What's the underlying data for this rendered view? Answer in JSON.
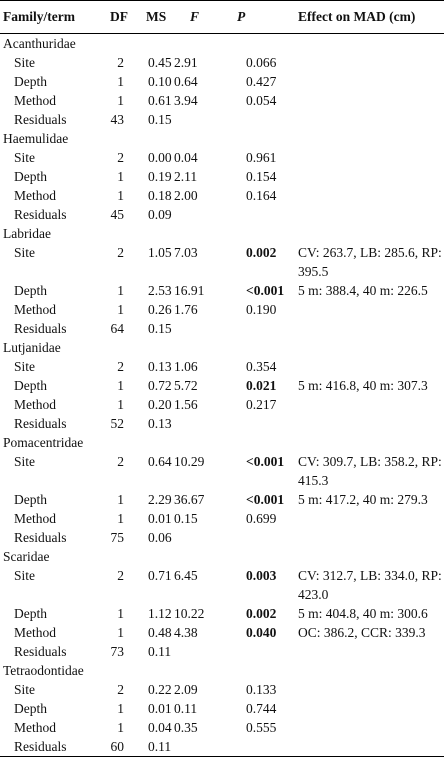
{
  "header": {
    "columns": [
      "Family/term",
      "DF",
      "MS",
      "F",
      "P",
      "Effect on MAD (cm)"
    ]
  },
  "groups": [
    {
      "family": "Acanthuridae",
      "rows": [
        {
          "term": "Site",
          "df": "2",
          "ms": "0.45",
          "f": "2.91",
          "p": "0.066"
        },
        {
          "term": "Depth",
          "df": "1",
          "ms": "0.10",
          "f": "0.64",
          "p": "0.427"
        },
        {
          "term": "Method",
          "df": "1",
          "ms": "0.61",
          "f": "3.94",
          "p": "0.054"
        },
        {
          "term": "Residuals",
          "df": "43",
          "ms": "0.15"
        }
      ]
    },
    {
      "family": "Haemulidae",
      "rows": [
        {
          "term": "Site",
          "df": "2",
          "ms": "0.00",
          "f": "0.04",
          "p": "0.961"
        },
        {
          "term": "Depth",
          "df": "1",
          "ms": "0.19",
          "f": "2.11",
          "p": "0.154"
        },
        {
          "term": "Method",
          "df": "1",
          "ms": "0.18",
          "f": "2.00",
          "p": "0.164"
        },
        {
          "term": "Residuals",
          "df": "45",
          "ms": "0.09"
        }
      ]
    },
    {
      "family": "Labridae",
      "rows": [
        {
          "term": "Site",
          "df": "2",
          "ms": "1.05",
          "f": "7.03",
          "p": "0.002",
          "bold": true,
          "effect": "CV: 263.7, LB: 285.6, RP: 395.5"
        },
        {
          "term": "Depth",
          "df": "1",
          "ms": "2.53",
          "f": "16.91",
          "p": "<0.001",
          "bold": true,
          "effect": "5 m: 388.4, 40 m: 226.5"
        },
        {
          "term": "Method",
          "df": "1",
          "ms": "0.26",
          "f": "1.76",
          "p": "0.190"
        },
        {
          "term": "Residuals",
          "df": "64",
          "ms": "0.15"
        }
      ]
    },
    {
      "family": "Lutjanidae",
      "rows": [
        {
          "term": "Site",
          "df": "2",
          "ms": "0.13",
          "f": "1.06",
          "p": "0.354"
        },
        {
          "term": "Depth",
          "df": "1",
          "ms": "0.72",
          "f": "5.72",
          "p": "0.021",
          "bold": true,
          "effect": "5 m: 416.8, 40 m: 307.3"
        },
        {
          "term": "Method",
          "df": "1",
          "ms": "0.20",
          "f": "1.56",
          "p": "0.217"
        },
        {
          "term": "Residuals",
          "df": "52",
          "ms": "0.13"
        }
      ]
    },
    {
      "family": "Pomacentridae",
      "rows": [
        {
          "term": "Site",
          "df": "2",
          "ms": "0.64",
          "f": "10.29",
          "p": "<0.001",
          "bold": true,
          "effect": "CV: 309.7, LB: 358.2, RP: 415.3"
        },
        {
          "term": "Depth",
          "df": "1",
          "ms": "2.29",
          "f": "36.67",
          "p": "<0.001",
          "bold": true,
          "effect": "5 m: 417.2, 40 m: 279.3"
        },
        {
          "term": "Method",
          "df": "1",
          "ms": "0.01",
          "f": "0.15",
          "p": "0.699"
        },
        {
          "term": "Residuals",
          "df": "75",
          "ms": "0.06"
        }
      ]
    },
    {
      "family": "Scaridae",
      "rows": [
        {
          "term": "Site",
          "df": "2",
          "ms": "0.71",
          "f": "6.45",
          "p": "0.003",
          "bold": true,
          "effect": "CV: 312.7, LB: 334.0, RP: 423.0"
        },
        {
          "term": "Depth",
          "df": "1",
          "ms": "1.12",
          "f": "10.22",
          "p": "0.002",
          "bold": true,
          "effect": "5 m: 404.8, 40 m: 300.6"
        },
        {
          "term": "Method",
          "df": "1",
          "ms": "0.48",
          "f": "4.38",
          "p": "0.040",
          "bold": true,
          "effect": "OC: 386.2, CCR: 339.3"
        },
        {
          "term": "Residuals",
          "df": "73",
          "ms": "0.11"
        }
      ]
    },
    {
      "family": "Tetraodontidae",
      "rows": [
        {
          "term": "Site",
          "df": "2",
          "ms": "0.22",
          "f": "2.09",
          "p": "0.133"
        },
        {
          "term": "Depth",
          "df": "1",
          "ms": "0.01",
          "f": "0.11",
          "p": "0.744"
        },
        {
          "term": "Method",
          "df": "1",
          "ms": "0.04",
          "f": "0.35",
          "p": "0.555"
        },
        {
          "term": "Residuals",
          "df": "60",
          "ms": "0.11"
        }
      ]
    }
  ]
}
